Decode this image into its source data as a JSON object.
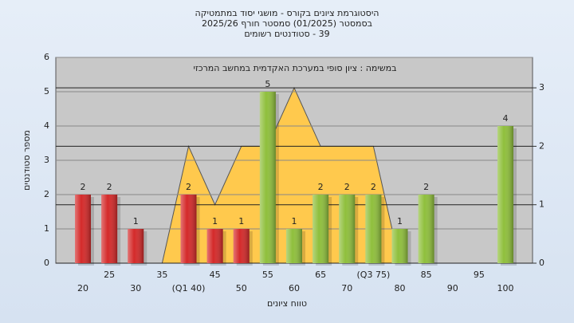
{
  "chart_data": {
    "type": "bar",
    "title": "היסטוגרמת ציונים בקורס - מושגי יסוד במתמטיקה",
    "subtitle": "בסמסטר  (01/2025)  סמסטר חורף 2025/26",
    "subtitle2": "39 - סטודנטים רשומים",
    "annotation": "במשימה : ציון סופי במערכת האקדמית במחשב המרכזי",
    "x_label": "טווח ציונים",
    "y_label": "מספר סטודנטים",
    "categories": [
      "20",
      "25",
      "30",
      "35",
      "(Q1 40)",
      "45",
      "50",
      "55",
      "60",
      "65",
      "70",
      "(Q3 75)",
      "80",
      "85",
      "90",
      "95",
      "100"
    ],
    "series": [
      {
        "values": [
          2,
          2,
          1,
          0,
          2,
          1,
          1,
          5,
          1,
          2,
          2,
          2,
          1,
          2,
          0,
          0,
          4
        ],
        "colors": [
          "#d42a2a",
          "#d42a2a",
          "#d42a2a",
          "#d42a2a",
          "#d42a2a",
          "#d42a2a",
          "#d42a2a",
          "#8fbf3c",
          "#8fbf3c",
          "#8fbf3c",
          "#8fbf3c",
          "#8fbf3c",
          "#8fbf3c",
          "#8fbf3c",
          "#8fbf3c",
          "#8fbf3c",
          "#8fbf3c"
        ]
      },
      {
        "type": "area",
        "axis": "y2",
        "color": "#ffc94d",
        "values": [
          null,
          null,
          null,
          0,
          2,
          1,
          2,
          2,
          3,
          2,
          2,
          2,
          0,
          null,
          null,
          null,
          null
        ]
      }
    ],
    "ylim": [
      0,
      6
    ],
    "yticks": [
      0,
      1,
      2,
      3,
      4,
      5,
      6
    ],
    "y2lim": [
      0,
      3.52
    ],
    "y2ticks": [
      0,
      1,
      2,
      3
    ],
    "grid": true
  }
}
